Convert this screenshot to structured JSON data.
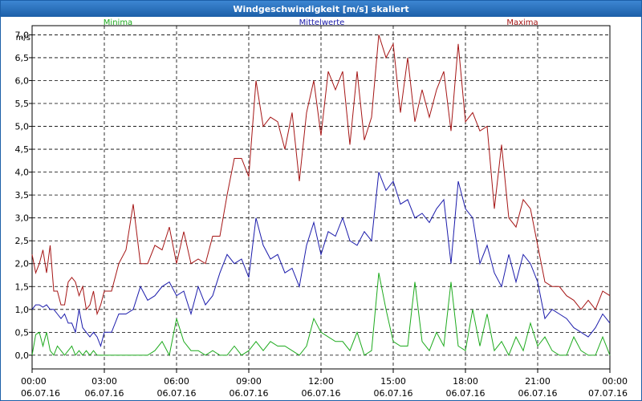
{
  "window": {
    "title": "Windgeschwindigkeit [m/s] skaliert"
  },
  "chart_data": {
    "type": "line",
    "title": "Windgeschwindigkeit [m/s] skaliert",
    "ylabel": "m/s",
    "ylim": [
      -0.3,
      7.2
    ],
    "xlim": [
      0,
      24
    ],
    "grid": true,
    "y_ticks": [
      "0,0",
      "0,5",
      "1,0",
      "1,5",
      "2,0",
      "2,5",
      "3,0",
      "3,5",
      "4,0",
      "4,5",
      "5,0",
      "5,5",
      "6,0",
      "6,5",
      "7,0"
    ],
    "y_tick_values": [
      0,
      0.5,
      1,
      1.5,
      2,
      2.5,
      3,
      3.5,
      4,
      4.5,
      5,
      5.5,
      6,
      6.5,
      7
    ],
    "x_ticks": [
      {
        "pos": 0,
        "time": "00:00",
        "date": "06.07.16"
      },
      {
        "pos": 3,
        "time": "03:00",
        "date": "06.07.16"
      },
      {
        "pos": 6,
        "time": "06:00",
        "date": "06.07.16"
      },
      {
        "pos": 9,
        "time": "09:00",
        "date": "06.07.16"
      },
      {
        "pos": 12,
        "time": "12:00",
        "date": "06.07.16"
      },
      {
        "pos": 15,
        "time": "15:00",
        "date": "06.07.16"
      },
      {
        "pos": 18,
        "time": "18:00",
        "date": "06.07.16"
      },
      {
        "pos": 21,
        "time": "21:00",
        "date": "06.07.16"
      },
      {
        "pos": 24,
        "time": "00:00",
        "date": "07.07.16"
      }
    ],
    "series": [
      {
        "name": "Minima",
        "color": "#1daa1d",
        "legend_pos": "left",
        "x": [
          0,
          0.15,
          0.3,
          0.45,
          0.6,
          0.75,
          0.9,
          1.05,
          1.2,
          1.35,
          1.5,
          1.65,
          1.8,
          1.95,
          2.1,
          2.25,
          2.4,
          2.55,
          2.7,
          2.85,
          3,
          3.3,
          3.6,
          3.9,
          4.2,
          4.5,
          4.8,
          5.1,
          5.4,
          5.7,
          6,
          6.3,
          6.6,
          6.9,
          7.2,
          7.5,
          7.8,
          8.1,
          8.4,
          8.7,
          9,
          9.3,
          9.6,
          9.9,
          10.2,
          10.5,
          10.8,
          11.1,
          11.4,
          11.7,
          12,
          12.3,
          12.6,
          12.9,
          13.2,
          13.5,
          13.8,
          14.1,
          14.4,
          14.7,
          15,
          15.3,
          15.6,
          15.9,
          16.2,
          16.5,
          16.8,
          17.1,
          17.4,
          17.7,
          18,
          18.3,
          18.6,
          18.9,
          19.2,
          19.5,
          19.8,
          20.1,
          20.4,
          20.7,
          21,
          21.3,
          21.6,
          21.9,
          22.2,
          22.5,
          22.8,
          23.1,
          23.4,
          23.7,
          24
        ],
        "values": [
          0,
          0.45,
          0.5,
          0.2,
          0.5,
          0.1,
          0,
          0.2,
          0.1,
          0,
          0.1,
          0.2,
          0,
          0.1,
          0,
          0.1,
          0,
          0.1,
          0,
          0,
          0,
          0,
          0,
          0,
          0,
          0,
          0,
          0.1,
          0.3,
          0,
          0.8,
          0.3,
          0.1,
          0.1,
          0,
          0.1,
          0,
          0,
          0.2,
          0,
          0.1,
          0.3,
          0.1,
          0.3,
          0.2,
          0.2,
          0.1,
          0,
          0.2,
          0.8,
          0.5,
          0.4,
          0.3,
          0.3,
          0.1,
          0.5,
          0,
          0.1,
          1.8,
          1,
          0.3,
          0.2,
          0.2,
          1.6,
          0.3,
          0.1,
          0.5,
          0.2,
          1.6,
          0.2,
          0.1,
          1,
          0.2,
          0.9,
          0.1,
          0.3,
          0,
          0.4,
          0.1,
          0.7,
          0.2,
          0.4,
          0.1,
          0,
          0,
          0.4,
          0.1,
          0,
          0,
          0.4,
          0
        ]
      },
      {
        "name": "Mittelwerte",
        "color": "#1b1bab",
        "legend_pos": "center",
        "x": [
          0,
          0.15,
          0.3,
          0.45,
          0.6,
          0.75,
          0.9,
          1.05,
          1.2,
          1.35,
          1.5,
          1.65,
          1.8,
          1.95,
          2.1,
          2.25,
          2.4,
          2.55,
          2.7,
          2.85,
          3,
          3.3,
          3.6,
          3.9,
          4.2,
          4.5,
          4.8,
          5.1,
          5.4,
          5.7,
          6,
          6.3,
          6.6,
          6.9,
          7.2,
          7.5,
          7.8,
          8.1,
          8.4,
          8.7,
          9,
          9.3,
          9.6,
          9.9,
          10.2,
          10.5,
          10.8,
          11.1,
          11.4,
          11.7,
          12,
          12.3,
          12.6,
          12.9,
          13.2,
          13.5,
          13.8,
          14.1,
          14.4,
          14.7,
          15,
          15.3,
          15.6,
          15.9,
          16.2,
          16.5,
          16.8,
          17.1,
          17.4,
          17.7,
          18,
          18.3,
          18.6,
          18.9,
          19.2,
          19.5,
          19.8,
          20.1,
          20.4,
          20.7,
          21,
          21.3,
          21.6,
          21.9,
          22.2,
          22.5,
          22.8,
          23.1,
          23.4,
          23.7,
          24
        ],
        "values": [
          1,
          1.1,
          1.1,
          1.05,
          1.1,
          1.0,
          1.0,
          0.9,
          0.8,
          0.9,
          0.7,
          0.7,
          0.5,
          1.0,
          0.6,
          0.5,
          0.4,
          0.5,
          0.4,
          0.2,
          0.5,
          0.5,
          0.9,
          0.9,
          1.0,
          1.5,
          1.2,
          1.3,
          1.5,
          1.6,
          1.3,
          1.4,
          0.9,
          1.5,
          1.1,
          1.3,
          1.8,
          2.2,
          2.0,
          2.1,
          1.7,
          3.0,
          2.4,
          2.1,
          2.2,
          1.8,
          1.9,
          1.5,
          2.4,
          2.9,
          2.2,
          2.7,
          2.6,
          3.0,
          2.5,
          2.4,
          2.7,
          2.5,
          4.0,
          3.6,
          3.8,
          3.3,
          3.4,
          3.0,
          3.1,
          2.9,
          3.2,
          3.4,
          2.0,
          3.8,
          3.2,
          3.0,
          2.0,
          2.4,
          1.8,
          1.5,
          2.2,
          1.6,
          2.2,
          2.0,
          1.6,
          0.8,
          1.0,
          0.9,
          0.8,
          0.6,
          0.5,
          0.4,
          0.6,
          0.9,
          0.7
        ]
      },
      {
        "name": "Maxima",
        "color": "#a51515",
        "legend_pos": "right",
        "x": [
          0,
          0.15,
          0.3,
          0.45,
          0.6,
          0.75,
          0.9,
          1.05,
          1.2,
          1.35,
          1.5,
          1.65,
          1.8,
          1.95,
          2.1,
          2.25,
          2.4,
          2.55,
          2.7,
          2.85,
          3,
          3.3,
          3.6,
          3.9,
          4.2,
          4.5,
          4.8,
          5.1,
          5.4,
          5.7,
          6,
          6.3,
          6.6,
          6.9,
          7.2,
          7.5,
          7.8,
          8.1,
          8.4,
          8.7,
          9,
          9.3,
          9.6,
          9.9,
          10.2,
          10.5,
          10.8,
          11.1,
          11.4,
          11.7,
          12,
          12.3,
          12.6,
          12.9,
          13.2,
          13.5,
          13.8,
          14.1,
          14.4,
          14.7,
          15,
          15.3,
          15.6,
          15.9,
          16.2,
          16.5,
          16.8,
          17.1,
          17.4,
          17.7,
          18,
          18.3,
          18.6,
          18.9,
          19.2,
          19.5,
          19.8,
          20.1,
          20.4,
          20.7,
          21,
          21.3,
          21.6,
          21.9,
          22.2,
          22.5,
          22.8,
          23.1,
          23.4,
          23.7,
          24
        ],
        "values": [
          2.2,
          1.8,
          2.0,
          2.3,
          1.8,
          2.4,
          1.4,
          1.4,
          1.1,
          1.1,
          1.6,
          1.7,
          1.6,
          1.3,
          1.5,
          1.0,
          1.1,
          1.4,
          0.9,
          1.1,
          1.4,
          1.4,
          2.0,
          2.3,
          3.3,
          2.0,
          2.0,
          2.4,
          2.3,
          2.8,
          2.0,
          2.7,
          2.0,
          2.1,
          2.0,
          2.6,
          2.6,
          3.5,
          4.3,
          4.3,
          3.9,
          6.0,
          5.0,
          5.2,
          5.1,
          4.5,
          5.3,
          3.8,
          5.3,
          6.0,
          4.8,
          6.2,
          5.8,
          6.2,
          4.6,
          6.2,
          4.7,
          5.2,
          7.0,
          6.5,
          6.8,
          5.3,
          6.5,
          5.1,
          5.8,
          5.2,
          5.8,
          6.2,
          4.9,
          6.8,
          5.1,
          5.3,
          4.9,
          5.0,
          3.2,
          4.6,
          3.0,
          2.8,
          3.4,
          3.2,
          2.4,
          1.6,
          1.5,
          1.5,
          1.3,
          1.2,
          1.0,
          1.2,
          1.0,
          1.4,
          1.3
        ]
      }
    ]
  }
}
